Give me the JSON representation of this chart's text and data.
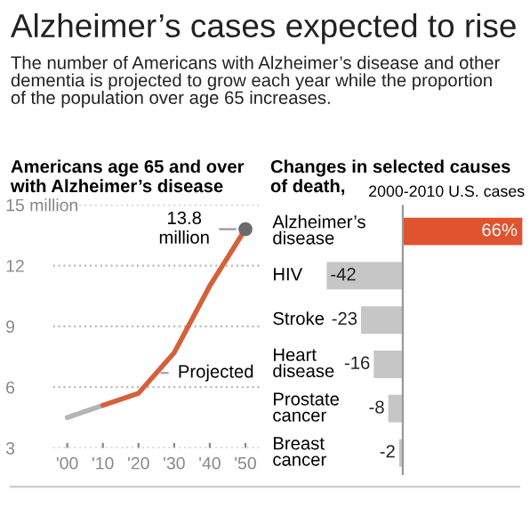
{
  "chart_data": [
    {
      "type": "other",
      "title": "Alzheimer’s cases expected to rise",
      "subtitle": "The number of Americans with Alzheimer’s disease and other\ndementia is projected to grow each year while the proportion\nof the population over age 65 increases."
    },
    {
      "type": "line",
      "title": "Americans age 65 and over\nwith Alzheimer’s disease",
      "series": [
        {
          "color": "#b4b4b4",
          "x": [
            2000,
            2010
          ],
          "values": [
            4.5,
            5.1
          ]
        },
        {
          "name": "Projected",
          "color": "#d4613b",
          "x": [
            2010,
            2020,
            2030,
            2040,
            2050
          ],
          "values": [
            5.1,
            5.7,
            7.7,
            11.0,
            13.8
          ]
        },
        {
          "type": "scatter",
          "marker": "circle",
          "color": "#6b6b6b",
          "x": [
            2050
          ],
          "values": [
            13.8
          ]
        }
      ],
      "annotations": [
        {
          "text": "13.8\nmillion",
          "x": 2050,
          "y": 13.8
        }
      ],
      "xlim": [
        1996,
        2054
      ],
      "xticks": [
        {
          "value": 2000,
          "label": "'00"
        },
        {
          "value": 2010,
          "label": "'10"
        },
        {
          "value": 2020,
          "label": "'20"
        },
        {
          "value": 2030,
          "label": "'30"
        },
        {
          "value": 2040,
          "label": "'40"
        },
        {
          "value": 2050,
          "label": "'50"
        }
      ],
      "ylim": [
        3,
        15
      ],
      "yticks": [
        3,
        6,
        9,
        12,
        {
          "value": 15,
          "label": "15 million"
        }
      ],
      "grid": "y",
      "marker": "none",
      "line_style": "solid"
    },
    {
      "type": "bar",
      "orientation": "horizontal",
      "title": "Changes in selected causes\nof death,",
      "subtitle": "2000-2010 U.S. cases",
      "categories": [
        "Alzheimer’s\ndisease",
        "HIV",
        "Stroke",
        "Heart\ndisease",
        "Prostate\ncancer",
        "Breast\ncancer"
      ],
      "values": [
        66,
        -42,
        -23,
        -16,
        -8,
        -2
      ],
      "colors": [
        "#e0532f",
        "#c6c6c6",
        "#c6c6c6",
        "#c6c6c6",
        "#c6c6c6",
        "#c6c6c6"
      ],
      "value_labels": [
        "66%",
        "-42",
        "-23",
        "-16",
        "-8",
        "-2"
      ]
    }
  ]
}
